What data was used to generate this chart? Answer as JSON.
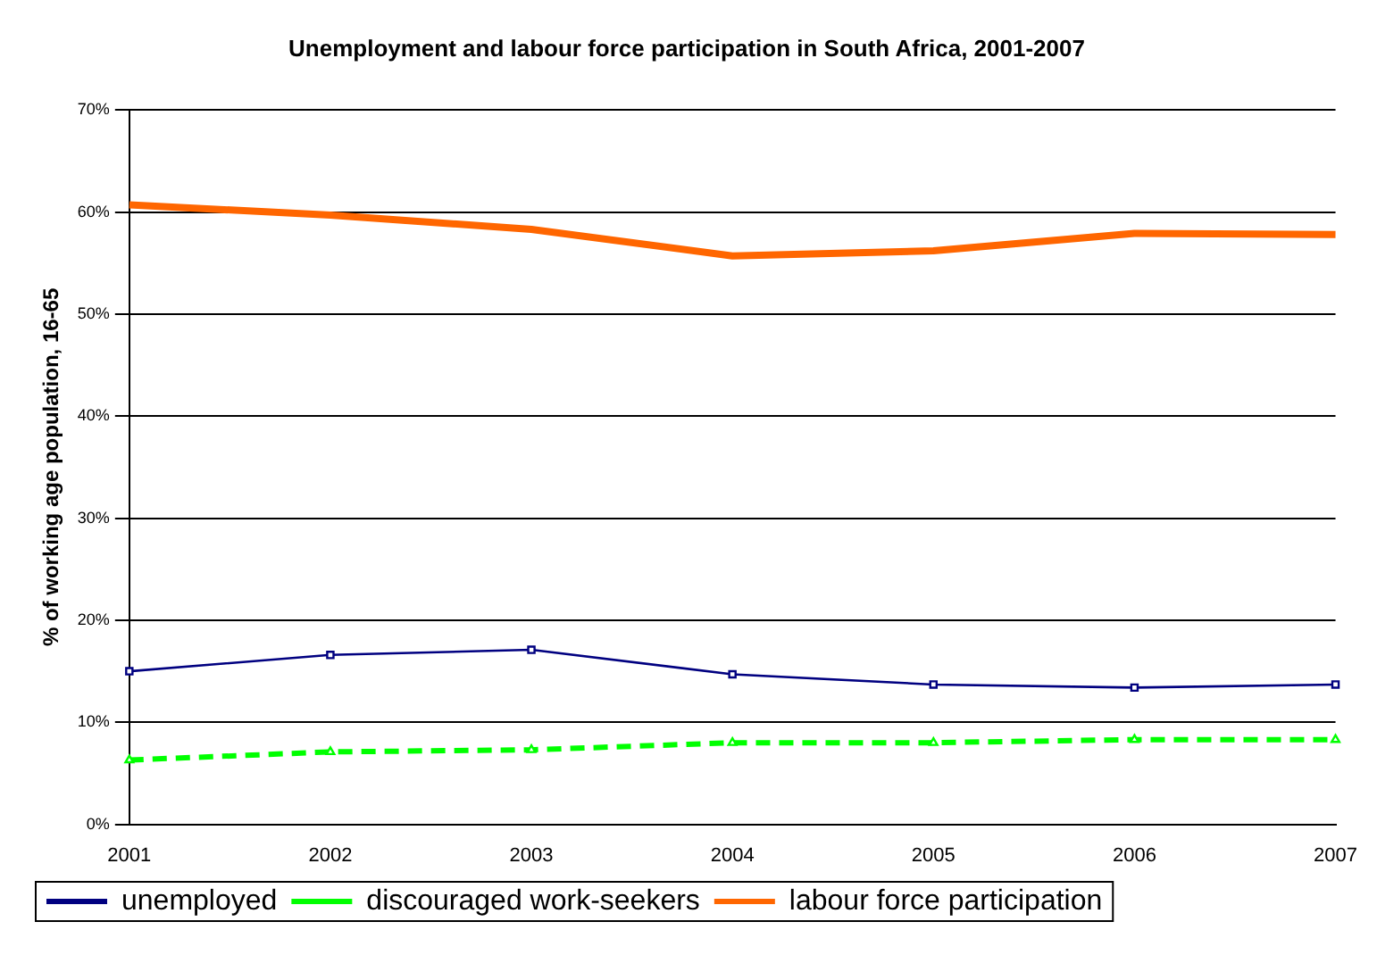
{
  "chart_data": {
    "type": "line",
    "title": "Unemployment and labour force participation in South Africa, 2001-2007",
    "ylabel": "% of working age population, 16-65",
    "categories": [
      "2001",
      "2002",
      "2003",
      "2004",
      "2005",
      "2006",
      "2007"
    ],
    "series": [
      {
        "name": "unemployed",
        "color": "#000080",
        "values": [
          15.0,
          16.6,
          17.1,
          14.7,
          13.7,
          13.4,
          13.7
        ],
        "marker": "square",
        "line_style": "solid"
      },
      {
        "name": "discouraged work-seekers",
        "color": "#00ff00",
        "values": [
          6.3,
          7.1,
          7.3,
          8.0,
          8.0,
          8.3,
          8.3
        ],
        "marker": "triangle",
        "line_style": "dashed"
      },
      {
        "name": "labour force participation",
        "color": "#ff6600",
        "values": [
          60.7,
          59.7,
          58.3,
          55.7,
          56.2,
          57.9,
          57.8
        ],
        "marker": "none",
        "line_style": "solid"
      }
    ],
    "ylim": [
      0,
      70
    ],
    "yticks": [
      {
        "value": 0,
        "label": "0%"
      },
      {
        "value": 10,
        "label": "10%"
      },
      {
        "value": 20,
        "label": "20%"
      },
      {
        "value": 30,
        "label": "30%"
      },
      {
        "value": 40,
        "label": "40%"
      },
      {
        "value": 50,
        "label": "50%"
      },
      {
        "value": 60,
        "label": "60%"
      },
      {
        "value": 70,
        "label": "70%"
      }
    ],
    "grid": "y",
    "legend": "bottom"
  }
}
